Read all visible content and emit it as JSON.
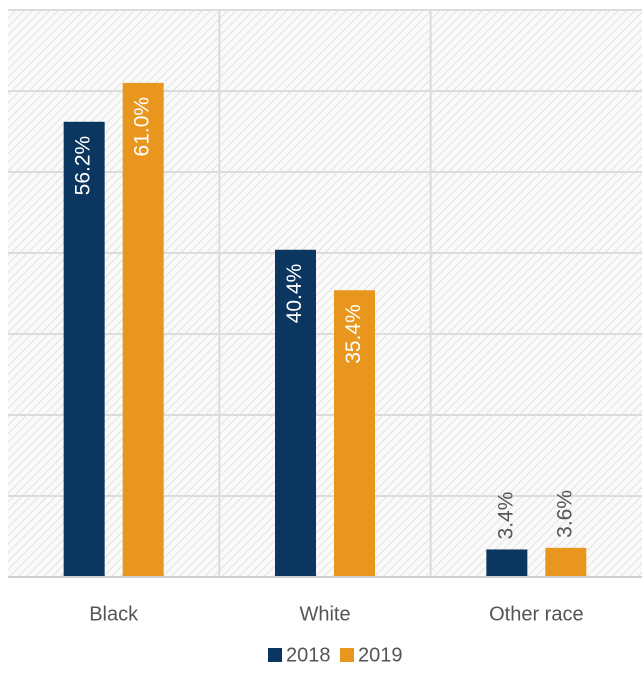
{
  "chart_data": {
    "type": "bar",
    "categories": [
      "Black",
      "White",
      "Other race"
    ],
    "series": [
      {
        "name": "2018",
        "color": "#0b3660",
        "values": [
          56.2,
          40.4,
          3.4
        ],
        "value_labels": [
          "56.2%",
          "40.4%",
          "3.4%"
        ]
      },
      {
        "name": "2019",
        "color": "#e8961e",
        "values": [
          61.0,
          35.4,
          3.6
        ],
        "value_labels": [
          "61.0%",
          "35.4%",
          "3.6%"
        ]
      }
    ],
    "ylim": [
      0,
      70
    ],
    "yticks": [
      0,
      10,
      20,
      30,
      40,
      50,
      60,
      70
    ],
    "grid": true
  }
}
